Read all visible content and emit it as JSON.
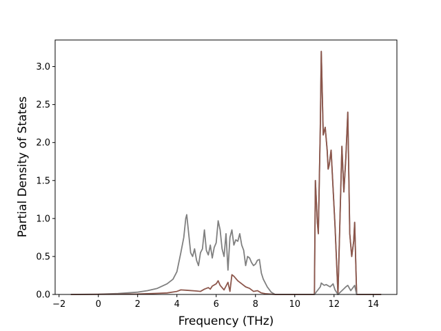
{
  "chart_data": {
    "type": "line",
    "title": "",
    "xlabel": "Frequency (THz)",
    "ylabel": "Partial Density of States",
    "xlim": [
      -2.2,
      15.2
    ],
    "ylim": [
      0,
      3.35
    ],
    "xticks": [
      -2,
      0,
      2,
      4,
      6,
      8,
      10,
      12,
      14
    ],
    "yticks": [
      0.0,
      0.5,
      1.0,
      1.5,
      2.0,
      2.5,
      3.0
    ],
    "xtick_labels": [
      "−2",
      "0",
      "2",
      "4",
      "6",
      "8",
      "10",
      "12",
      "14"
    ],
    "ytick_labels": [
      "0.0",
      "0.5",
      "1.0",
      "1.5",
      "2.0",
      "2.5",
      "3.0"
    ],
    "grid": false,
    "legend": "none",
    "series": [
      {
        "color": "#7f7f7f",
        "points": [
          [
            -1.4,
            0
          ],
          [
            0,
            0.003
          ],
          [
            1,
            0.012
          ],
          [
            2,
            0.03
          ],
          [
            2.5,
            0.05
          ],
          [
            3,
            0.08
          ],
          [
            3.5,
            0.14
          ],
          [
            3.8,
            0.2
          ],
          [
            4.0,
            0.3
          ],
          [
            4.2,
            0.55
          ],
          [
            4.35,
            0.75
          ],
          [
            4.45,
            1.0
          ],
          [
            4.5,
            1.05
          ],
          [
            4.6,
            0.8
          ],
          [
            4.7,
            0.55
          ],
          [
            4.8,
            0.5
          ],
          [
            4.9,
            0.6
          ],
          [
            5.0,
            0.45
          ],
          [
            5.1,
            0.38
          ],
          [
            5.2,
            0.55
          ],
          [
            5.3,
            0.6
          ],
          [
            5.4,
            0.85
          ],
          [
            5.5,
            0.58
          ],
          [
            5.6,
            0.52
          ],
          [
            5.7,
            0.65
          ],
          [
            5.8,
            0.48
          ],
          [
            5.9,
            0.62
          ],
          [
            6.0,
            0.68
          ],
          [
            6.1,
            0.97
          ],
          [
            6.2,
            0.85
          ],
          [
            6.3,
            0.6
          ],
          [
            6.4,
            0.5
          ],
          [
            6.5,
            0.8
          ],
          [
            6.6,
            0.32
          ],
          [
            6.7,
            0.75
          ],
          [
            6.8,
            0.85
          ],
          [
            6.9,
            0.65
          ],
          [
            7.0,
            0.72
          ],
          [
            7.1,
            0.7
          ],
          [
            7.2,
            0.8
          ],
          [
            7.3,
            0.65
          ],
          [
            7.4,
            0.58
          ],
          [
            7.5,
            0.38
          ],
          [
            7.6,
            0.5
          ],
          [
            7.7,
            0.48
          ],
          [
            7.8,
            0.42
          ],
          [
            7.9,
            0.38
          ],
          [
            8.0,
            0.4
          ],
          [
            8.1,
            0.45
          ],
          [
            8.2,
            0.46
          ],
          [
            8.3,
            0.28
          ],
          [
            8.4,
            0.2
          ],
          [
            8.6,
            0.1
          ],
          [
            8.8,
            0.03
          ],
          [
            9.0,
            0
          ],
          [
            11.0,
            0
          ],
          [
            11.05,
            1.5
          ],
          [
            11.15,
            0.95
          ],
          [
            11.2,
            0.8
          ],
          [
            11.3,
            2.2
          ],
          [
            11.35,
            3.2
          ],
          [
            11.45,
            2.1
          ],
          [
            11.55,
            2.2
          ],
          [
            11.65,
            1.9
          ],
          [
            11.7,
            1.65
          ],
          [
            11.75,
            1.7
          ],
          [
            11.85,
            1.9
          ],
          [
            11.95,
            1.4
          ],
          [
            12.05,
            0.9
          ],
          [
            12.2,
            0
          ],
          [
            12.4,
            1.95
          ],
          [
            12.5,
            1.35
          ],
          [
            12.6,
            1.8
          ],
          [
            12.7,
            2.4
          ],
          [
            12.8,
            0.8
          ],
          [
            12.9,
            0.5
          ],
          [
            13.0,
            0.7
          ],
          [
            13.05,
            0.95
          ],
          [
            13.15,
            0
          ],
          [
            14.4,
            0
          ]
        ]
      },
      {
        "color": "#8c564b",
        "points": [
          [
            -1.4,
            0
          ],
          [
            2,
            0.005
          ],
          [
            3,
            0.015
          ],
          [
            3.5,
            0.02
          ],
          [
            4,
            0.04
          ],
          [
            4.2,
            0.06
          ],
          [
            4.5,
            0.055
          ],
          [
            5,
            0.045
          ],
          [
            5.2,
            0.04
          ],
          [
            5.4,
            0.07
          ],
          [
            5.6,
            0.09
          ],
          [
            5.7,
            0.07
          ],
          [
            5.8,
            0.11
          ],
          [
            6.0,
            0.14
          ],
          [
            6.1,
            0.18
          ],
          [
            6.2,
            0.12
          ],
          [
            6.4,
            0.06
          ],
          [
            6.6,
            0.16
          ],
          [
            6.7,
            0.04
          ],
          [
            6.8,
            0.26
          ],
          [
            6.9,
            0.24
          ],
          [
            7.1,
            0.18
          ],
          [
            7.3,
            0.14
          ],
          [
            7.5,
            0.1
          ],
          [
            7.7,
            0.08
          ],
          [
            7.9,
            0.04
          ],
          [
            8.1,
            0.05
          ],
          [
            8.3,
            0.02
          ],
          [
            8.5,
            0.01
          ],
          [
            9,
            0
          ],
          [
            11.0,
            0
          ],
          [
            11.05,
            1.5
          ],
          [
            11.15,
            0.95
          ],
          [
            11.2,
            0.8
          ],
          [
            11.3,
            2.2
          ],
          [
            11.35,
            3.2
          ],
          [
            11.45,
            2.1
          ],
          [
            11.55,
            2.2
          ],
          [
            11.65,
            1.9
          ],
          [
            11.7,
            1.65
          ],
          [
            11.75,
            1.7
          ],
          [
            11.85,
            1.9
          ],
          [
            11.95,
            1.4
          ],
          [
            12.05,
            0.9
          ],
          [
            12.2,
            0
          ],
          [
            12.4,
            1.95
          ],
          [
            12.5,
            1.35
          ],
          [
            12.6,
            1.8
          ],
          [
            12.7,
            2.4
          ],
          [
            12.8,
            0.8
          ],
          [
            12.9,
            0.5
          ],
          [
            13.0,
            0.7
          ],
          [
            13.05,
            0.95
          ],
          [
            13.15,
            0
          ],
          [
            14.4,
            0
          ]
        ]
      },
      {
        "color": "#7f7f7f",
        "points": [
          [
            11.0,
            0
          ],
          [
            11.3,
            0.1
          ],
          [
            11.35,
            0.15
          ],
          [
            11.5,
            0.12
          ],
          [
            11.6,
            0.13
          ],
          [
            11.8,
            0.1
          ],
          [
            11.95,
            0.14
          ],
          [
            12.05,
            0.06
          ],
          [
            12.2,
            0
          ],
          [
            12.6,
            0.1
          ],
          [
            12.7,
            0.12
          ],
          [
            12.85,
            0.05
          ],
          [
            13.05,
            0.12
          ],
          [
            13.15,
            0
          ]
        ]
      }
    ]
  }
}
